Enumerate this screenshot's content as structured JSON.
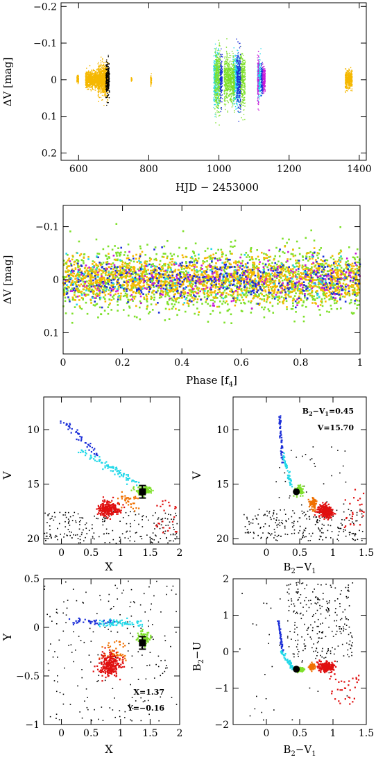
{
  "colors": {
    "orange": "#f5b800",
    "cyan": "#22d8e8",
    "green": "#7ee02a",
    "blue": "#1c2fd8",
    "magenta": "#c81ad8",
    "black": "#000000",
    "red": "#e01010",
    "darkorange": "#f07000"
  },
  "chart_data": [
    {
      "id": "lightcurve",
      "type": "scatter",
      "xlabel": "HJD − 2453000",
      "ylabel": "ΔV [mag]",
      "xlim": [
        550,
        1420
      ],
      "ylim": [
        0.22,
        -0.21
      ],
      "xticks": [
        600,
        800,
        1000,
        1200,
        1400
      ],
      "yticks": [
        -0.2,
        -0.1,
        0,
        0.1,
        0.2
      ],
      "ytick_labels": [
        "−0.2",
        "−0.1",
        "0",
        "0.1",
        "0.2"
      ],
      "series": [
        {
          "color": "orange",
          "segments": [
            [
              620,
              680,
              0.05
            ],
            [
              655,
              685,
              0.1
            ],
            [
              1360,
              1380,
              0.06
            ]
          ]
        },
        {
          "color": "black",
          "segments": [
            [
              678,
              688,
              0.11
            ]
          ]
        },
        {
          "color": "orange",
          "segments": [
            [
              595,
              600,
              0.02
            ],
            [
              750,
              752,
              0.01
            ],
            [
              805,
              808,
              0.03
            ]
          ]
        },
        {
          "color": "cyan",
          "segments": [
            [
              985,
              1000,
              0.17
            ],
            [
              1040,
              1060,
              0.15
            ],
            [
              1110,
              1120,
              0.12
            ]
          ]
        },
        {
          "color": "green",
          "segments": [
            [
              988,
              1005,
              0.19
            ],
            [
              1015,
              1045,
              0.15
            ],
            [
              1060,
              1075,
              0.17
            ]
          ]
        },
        {
          "color": "blue",
          "segments": [
            [
              1003,
              1010,
              0.15
            ],
            [
              1050,
              1062,
              0.17
            ],
            [
              1120,
              1126,
              0.1
            ]
          ]
        },
        {
          "color": "magenta",
          "segments": [
            [
              1110,
              1114,
              0.19
            ],
            [
              1125,
              1132,
              0.08
            ]
          ]
        }
      ]
    },
    {
      "id": "phase",
      "type": "scatter",
      "xlabel": "Phase [f4]",
      "ylabel": "ΔV [mag]",
      "xlim": [
        0,
        1
      ],
      "ylim": [
        0.14,
        -0.14
      ],
      "xticks": [
        0,
        0.2,
        0.4,
        0.6,
        0.8,
        1
      ],
      "xtick_labels": [
        "0",
        "0.2",
        "0.4",
        "0.6",
        "0.8",
        "1"
      ],
      "yticks": [
        -0.1,
        0,
        0.1
      ],
      "ytick_labels": [
        "−0.1",
        "0",
        "0.1"
      ],
      "series": [
        {
          "color": "green",
          "count": 1400,
          "spread": 0.14
        },
        {
          "color": "orange",
          "count": 1600,
          "spread": 0.09
        },
        {
          "color": "blue",
          "count": 450,
          "spread": 0.09
        },
        {
          "color": "magenta",
          "count": 220,
          "spread": 0.1
        },
        {
          "color": "cyan",
          "count": 120,
          "spread": 0.1
        }
      ]
    },
    {
      "id": "cmd-x-v",
      "type": "scatter",
      "xlabel": "X",
      "ylabel": "V",
      "xlim": [
        -0.3,
        2.0
      ],
      "ylim": [
        20.5,
        7.0
      ],
      "xticks": [
        0,
        0.5,
        1,
        1.5,
        2
      ],
      "xtick_labels": [
        "0",
        "0.5",
        "1",
        "1.5",
        "2"
      ],
      "yticks": [
        10,
        15,
        20
      ],
      "ytick_labels": [
        "10",
        "15",
        "20"
      ],
      "marker": {
        "x": 1.37,
        "y": 15.7,
        "shape": "square"
      }
    },
    {
      "id": "cmd-bv-v",
      "type": "scatter",
      "xlabel": "B2−V1",
      "ylabel": "V",
      "xlim": [
        -0.5,
        1.5
      ],
      "ylim": [
        20.5,
        7.0
      ],
      "xticks": [
        0,
        0.5,
        1,
        1.5
      ],
      "xtick_labels": [
        "0",
        "0.5",
        "1",
        "1.5"
      ],
      "yticks": [
        10,
        15,
        20
      ],
      "ytick_labels": [
        "10",
        "15",
        "20"
      ],
      "marker": {
        "x": 0.45,
        "y": 15.7,
        "shape": "circle"
      },
      "annotations": [
        "B2−V1=0.45",
        "V=15.70"
      ]
    },
    {
      "id": "cmd-x-y",
      "type": "scatter",
      "xlabel": "X",
      "ylabel": "Y",
      "xlim": [
        -0.3,
        2.0
      ],
      "ylim": [
        -1.0,
        0.5
      ],
      "xticks": [
        0,
        0.5,
        1,
        1.5,
        2
      ],
      "xtick_labels": [
        "0",
        "0.5",
        "1",
        "1.5",
        "2"
      ],
      "yticks": [
        -1,
        -0.5,
        0,
        0.5
      ],
      "ytick_labels": [
        "−1",
        "−0.5",
        "0",
        "0.5"
      ],
      "marker": {
        "x": 1.37,
        "y": -0.16,
        "shape": "square"
      },
      "annotations": [
        "X=1.37",
        "Y=−0.16"
      ]
    },
    {
      "id": "cmd-bv-u",
      "type": "scatter",
      "xlabel": "B2−V1",
      "ylabel": "B2−U",
      "xlim": [
        -0.5,
        1.5
      ],
      "ylim": [
        -2.0,
        2.0
      ],
      "xticks": [
        0,
        0.5,
        1,
        1.5
      ],
      "xtick_labels": [
        "0",
        "0.5",
        "1",
        "1.5"
      ],
      "yticks": [
        -2,
        -1,
        0,
        1,
        2
      ],
      "ytick_labels": [
        "−2",
        "−1",
        "0",
        "1",
        "2"
      ],
      "marker": {
        "x": 0.45,
        "y": -0.48,
        "shape": "circle"
      }
    }
  ]
}
